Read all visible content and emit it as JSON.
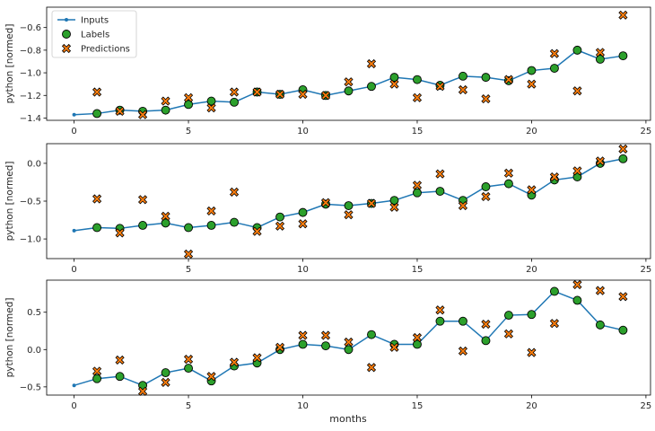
{
  "chart_data": {
    "type": "scatter",
    "xlabel": "months",
    "legend": {
      "placement": "top-left",
      "entries": [
        "Inputs",
        "Labels",
        "Predictions"
      ]
    },
    "colors": {
      "inputs": "#1f77b4",
      "labels": "#2ca02c",
      "predictions": "#ff7f0e",
      "edge": "#000000"
    },
    "panels": [
      {
        "ylabel": "python [normed]",
        "xlim": [
          -1.2,
          25.2
        ],
        "ylim": [
          -1.42,
          -0.42
        ],
        "xticks": [
          0,
          5,
          10,
          15,
          20,
          25
        ],
        "yticks": [
          -1.4,
          -1.2,
          -1.0,
          -0.8,
          -0.6
        ],
        "ytick_labels": [
          "−1.4",
          "−1.2",
          "−1.0",
          "−0.8",
          "−0.6"
        ],
        "inputs": {
          "x": [
            0,
            1,
            2,
            3,
            4,
            5,
            6,
            7,
            8,
            9,
            10,
            11,
            12,
            13,
            14,
            15,
            16,
            17,
            18,
            19,
            20,
            21,
            22,
            23,
            24
          ],
          "y": [
            -1.37,
            -1.36,
            -1.33,
            -1.34,
            -1.33,
            -1.28,
            -1.25,
            -1.26,
            -1.17,
            -1.19,
            -1.15,
            -1.2,
            -1.16,
            -1.12,
            -1.04,
            -1.06,
            -1.11,
            -1.03,
            -1.04,
            -1.07,
            -0.98,
            -0.96,
            -0.8,
            -0.88,
            -0.85
          ]
        },
        "labels": {
          "x": [
            1,
            2,
            3,
            4,
            5,
            6,
            7,
            8,
            9,
            10,
            11,
            12,
            13,
            14,
            15,
            16,
            17,
            18,
            19,
            20,
            21,
            22,
            23,
            24
          ],
          "y": [
            -1.36,
            -1.33,
            -1.34,
            -1.33,
            -1.28,
            -1.25,
            -1.26,
            -1.17,
            -1.19,
            -1.15,
            -1.2,
            -1.16,
            -1.12,
            -1.04,
            -1.06,
            -1.11,
            -1.03,
            -1.04,
            -1.07,
            -0.98,
            -0.96,
            -0.8,
            -0.88,
            -0.85
          ]
        },
        "predictions": {
          "x": [
            1,
            2,
            3,
            4,
            5,
            6,
            7,
            8,
            9,
            10,
            11,
            12,
            13,
            14,
            15,
            16,
            17,
            18,
            19,
            20,
            21,
            22,
            23,
            24
          ],
          "y": [
            -1.17,
            -1.34,
            -1.37,
            -1.25,
            -1.22,
            -1.31,
            -1.17,
            -1.17,
            -1.19,
            -1.19,
            -1.2,
            -1.08,
            -0.92,
            -1.1,
            -1.22,
            -1.12,
            -1.15,
            -1.23,
            -1.06,
            -1.1,
            -0.83,
            -1.16,
            -0.82,
            -0.49
          ]
        }
      },
      {
        "ylabel": "python [normed]",
        "xlim": [
          -1.2,
          25.2
        ],
        "ylim": [
          -1.26,
          0.26
        ],
        "xticks": [
          0,
          5,
          10,
          15,
          20,
          25
        ],
        "yticks": [
          -1.0,
          -0.5,
          0.0
        ],
        "ytick_labels": [
          "−1.0",
          "−0.5",
          "0.0"
        ],
        "inputs": {
          "x": [
            0,
            1,
            2,
            3,
            4,
            5,
            6,
            7,
            8,
            9,
            10,
            11,
            12,
            13,
            14,
            15,
            16,
            17,
            18,
            19,
            20,
            21,
            22,
            23,
            24
          ],
          "y": [
            -0.89,
            -0.85,
            -0.86,
            -0.82,
            -0.79,
            -0.85,
            -0.82,
            -0.78,
            -0.85,
            -0.71,
            -0.65,
            -0.54,
            -0.56,
            -0.53,
            -0.49,
            -0.39,
            -0.37,
            -0.49,
            -0.31,
            -0.27,
            -0.42,
            -0.22,
            -0.18,
            0.0,
            0.06
          ]
        },
        "labels": {
          "x": [
            1,
            2,
            3,
            4,
            5,
            6,
            7,
            8,
            9,
            10,
            11,
            12,
            13,
            14,
            15,
            16,
            17,
            18,
            19,
            20,
            21,
            22,
            23,
            24
          ],
          "y": [
            -0.85,
            -0.86,
            -0.82,
            -0.79,
            -0.85,
            -0.82,
            -0.78,
            -0.85,
            -0.71,
            -0.65,
            -0.54,
            -0.56,
            -0.53,
            -0.49,
            -0.39,
            -0.37,
            -0.49,
            -0.31,
            -0.27,
            -0.42,
            -0.22,
            -0.18,
            0.0,
            0.06
          ]
        },
        "predictions": {
          "x": [
            1,
            2,
            3,
            4,
            5,
            6,
            7,
            8,
            9,
            10,
            11,
            12,
            13,
            14,
            15,
            16,
            17,
            18,
            19,
            20,
            21,
            22,
            23,
            24
          ],
          "y": [
            -0.47,
            -0.92,
            -0.48,
            -0.7,
            -1.2,
            -0.63,
            -0.38,
            -0.9,
            -0.83,
            -0.8,
            -0.52,
            -0.68,
            -0.53,
            -0.58,
            -0.29,
            -0.14,
            -0.56,
            -0.44,
            -0.13,
            -0.35,
            -0.18,
            -0.1,
            0.03,
            0.19
          ]
        }
      },
      {
        "ylabel": "python [normed]",
        "xlim": [
          -1.2,
          25.2
        ],
        "ylim": [
          -0.61,
          0.93
        ],
        "xticks": [
          0,
          5,
          10,
          15,
          20,
          25
        ],
        "yticks": [
          -0.5,
          0.0,
          0.5
        ],
        "ytick_labels": [
          "−0.5",
          "0.0",
          "0.5"
        ],
        "inputs": {
          "x": [
            0,
            1,
            2,
            3,
            4,
            5,
            6,
            7,
            8,
            9,
            10,
            11,
            12,
            13,
            14,
            15,
            16,
            17,
            18,
            19,
            20,
            21,
            22,
            23,
            24
          ],
          "y": [
            -0.48,
            -0.39,
            -0.36,
            -0.48,
            -0.31,
            -0.25,
            -0.42,
            -0.22,
            -0.18,
            0.0,
            0.07,
            0.05,
            0.0,
            0.2,
            0.07,
            0.07,
            0.38,
            0.38,
            0.12,
            0.46,
            0.47,
            0.78,
            0.66,
            0.33,
            0.26
          ]
        },
        "labels": {
          "x": [
            1,
            2,
            3,
            4,
            5,
            6,
            7,
            8,
            9,
            10,
            11,
            12,
            13,
            14,
            15,
            16,
            17,
            18,
            19,
            20,
            21,
            22,
            23,
            24
          ],
          "y": [
            -0.39,
            -0.36,
            -0.48,
            -0.31,
            -0.25,
            -0.42,
            -0.22,
            -0.18,
            0.0,
            0.07,
            0.05,
            0.0,
            0.2,
            0.07,
            0.07,
            0.38,
            0.38,
            0.12,
            0.46,
            0.47,
            0.78,
            0.66,
            0.33,
            0.26
          ]
        },
        "predictions": {
          "x": [
            1,
            2,
            3,
            4,
            5,
            6,
            7,
            8,
            9,
            10,
            11,
            12,
            13,
            14,
            15,
            16,
            17,
            18,
            19,
            20,
            21,
            22,
            23,
            24
          ],
          "y": [
            -0.29,
            -0.14,
            -0.56,
            -0.44,
            -0.13,
            -0.36,
            -0.17,
            -0.11,
            0.03,
            0.19,
            0.19,
            0.1,
            -0.24,
            0.03,
            0.16,
            0.53,
            -0.02,
            0.34,
            0.21,
            -0.04,
            0.35,
            0.87,
            0.79,
            0.71
          ]
        }
      }
    ]
  }
}
